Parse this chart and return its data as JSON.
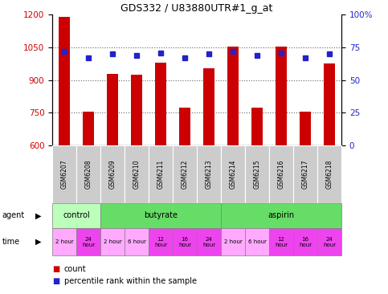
{
  "title": "GDS332 / U83880UTR#1_g_at",
  "samples": [
    "GSM6207",
    "GSM6208",
    "GSM6209",
    "GSM6210",
    "GSM6211",
    "GSM6212",
    "GSM6213",
    "GSM6214",
    "GSM6215",
    "GSM6216",
    "GSM6217",
    "GSM6218"
  ],
  "counts": [
    1190,
    755,
    930,
    925,
    980,
    775,
    955,
    1055,
    775,
    1055,
    755,
    975
  ],
  "percentiles": [
    72,
    67,
    70,
    69,
    71,
    67,
    70,
    72,
    69,
    71,
    67,
    70
  ],
  "ylim_left": [
    600,
    1200
  ],
  "ylim_right": [
    0,
    100
  ],
  "yticks_left": [
    600,
    750,
    900,
    1050,
    1200
  ],
  "yticks_right": [
    0,
    25,
    50,
    75,
    100
  ],
  "ytick_right_labels": [
    "0",
    "25",
    "50",
    "75",
    "100%"
  ],
  "bar_color": "#cc0000",
  "dot_color": "#2222cc",
  "agent_groups": [
    {
      "label": "control",
      "start": 0,
      "end": 2
    },
    {
      "label": "butyrate",
      "start": 2,
      "end": 7
    },
    {
      "label": "aspirin",
      "start": 7,
      "end": 12
    }
  ],
  "agent_color_light": "#bbffbb",
  "agent_color_dark": "#66dd66",
  "time_labels": [
    "2 hour",
    "24\nhour",
    "2 hour",
    "6 hour",
    "12\nhour",
    "16\nhour",
    "24\nhour",
    "2 hour",
    "6 hour",
    "12\nhour",
    "16\nhour",
    "24\nhour"
  ],
  "time_colors": [
    "#ffaaff",
    "#ee44ee",
    "#ffaaff",
    "#ffaaff",
    "#ee44ee",
    "#ee44ee",
    "#ee44ee",
    "#ffaaff",
    "#ffaaff",
    "#ee44ee",
    "#ee44ee",
    "#ee44ee"
  ],
  "grid_color": "#666666",
  "tick_label_color_left": "#cc0000",
  "tick_label_color_right": "#2222cc",
  "bar_bottom": 600,
  "sample_bg": "#cccccc",
  "legend_count_color": "#cc0000",
  "legend_dot_color": "#2222cc"
}
